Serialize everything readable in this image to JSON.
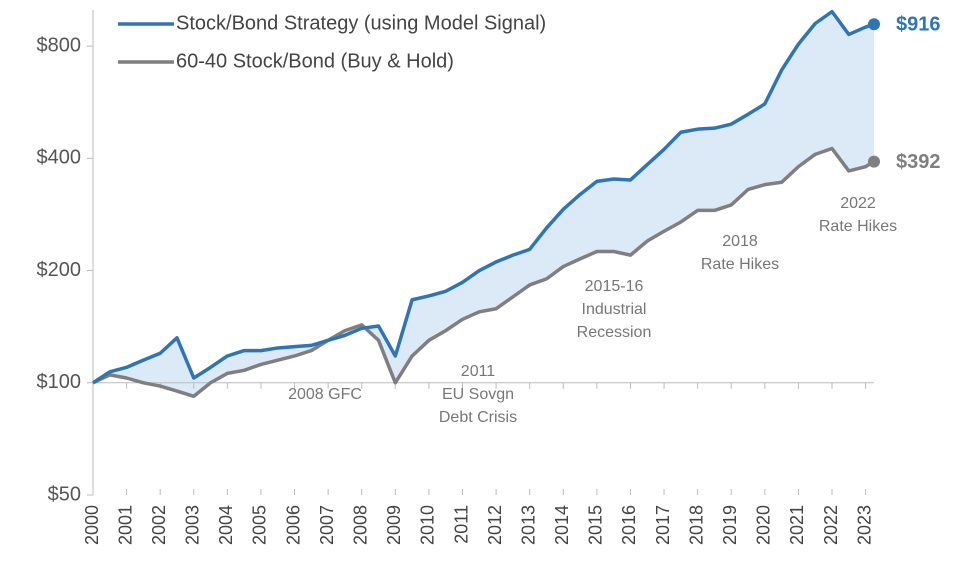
{
  "chart_data": {
    "type": "line",
    "log_scale": true,
    "legend": "upper left",
    "x": [
      2000,
      2000.5,
      2001,
      2001.5,
      2002,
      2002.5,
      2003,
      2003.5,
      2004,
      2004.5,
      2005,
      2005.5,
      2006,
      2006.5,
      2007,
      2007.5,
      2008,
      2008.5,
      2009,
      2009.5,
      2010,
      2010.5,
      2011,
      2011.5,
      2012,
      2012.5,
      2013,
      2013.5,
      2014,
      2014.5,
      2015,
      2015.5,
      2016,
      2016.5,
      2017,
      2017.5,
      2018,
      2018.5,
      2019,
      2019.5,
      2020,
      2020.5,
      2021,
      2021.5,
      2022,
      2022.5,
      2023,
      2023.25
    ],
    "xlim": [
      2000,
      2023.25
    ],
    "xticks": [
      2000,
      2001,
      2002,
      2003,
      2004,
      2005,
      2006,
      2007,
      2008,
      2009,
      2010,
      2011,
      2012,
      2013,
      2014,
      2015,
      2016,
      2017,
      2018,
      2019,
      2020,
      2021,
      2022,
      2023
    ],
    "ylim": [
      50,
      1000
    ],
    "yticks": [
      {
        "value": 50,
        "label": "$50"
      },
      {
        "value": 100,
        "label": "$100"
      },
      {
        "value": 200,
        "label": "$200"
      },
      {
        "value": 400,
        "label": "$400"
      },
      {
        "value": 800,
        "label": "$800"
      }
    ],
    "fill_color": "#dce9f7",
    "series": [
      {
        "name": "Stock/Bond Strategy (using Model Signal)",
        "color": "#2e75b6",
        "values": [
          100,
          107,
          110,
          115,
          120,
          132,
          103,
          110,
          118,
          122,
          122,
          124,
          125,
          126,
          130,
          134,
          140,
          142,
          118,
          167,
          171,
          176,
          186,
          200,
          211,
          220,
          228,
          260,
          292,
          320,
          347,
          352,
          350,
          385,
          423,
          470,
          479,
          482,
          494,
          525,
          560,
          690,
          810,
          920,
          990,
          860,
          900,
          916
        ],
        "value_labels": [
          null,
          null,
          null,
          null,
          null,
          null,
          null,
          null,
          null,
          null,
          null,
          null,
          null,
          null,
          null,
          null,
          null,
          null,
          null,
          null,
          null,
          null,
          null,
          null,
          null,
          null,
          null,
          null,
          null,
          null,
          null,
          null,
          null,
          null,
          null,
          null,
          null,
          null,
          null,
          null,
          null,
          null,
          null,
          null,
          null,
          null,
          null,
          "$916"
        ]
      },
      {
        "name": "60-40 Stock/Bond (Buy & Hold)",
        "color": "#7f7f7f",
        "values": [
          100,
          105,
          103,
          100,
          98,
          95,
          92,
          100,
          106,
          108,
          112,
          115,
          118,
          122,
          130,
          138,
          143,
          130,
          100,
          118,
          130,
          138,
          148,
          155,
          158,
          170,
          183,
          190,
          205,
          215,
          225,
          225,
          220,
          240,
          255,
          270,
          290,
          290,
          300,
          330,
          340,
          345,
          380,
          410,
          425,
          370,
          380,
          392
        ],
        "value_labels": [
          null,
          null,
          null,
          null,
          null,
          null,
          null,
          null,
          null,
          null,
          null,
          null,
          null,
          null,
          null,
          null,
          null,
          null,
          null,
          null,
          null,
          null,
          null,
          null,
          null,
          null,
          null,
          null,
          null,
          null,
          null,
          null,
          null,
          null,
          null,
          null,
          null,
          null,
          null,
          null,
          null,
          null,
          null,
          null,
          null,
          null,
          null,
          "$392"
        ]
      }
    ],
    "annotations": [
      {
        "lines": [
          "2008 GFC"
        ]
      },
      {
        "lines": [
          "2011",
          "EU Sovgn",
          "Debt Crisis"
        ]
      },
      {
        "lines": [
          "2015-16",
          "Industrial",
          "Recession"
        ]
      },
      {
        "lines": [
          "2018",
          "Rate Hikes"
        ]
      },
      {
        "lines": [
          "2022",
          "Rate Hikes"
        ]
      }
    ]
  }
}
